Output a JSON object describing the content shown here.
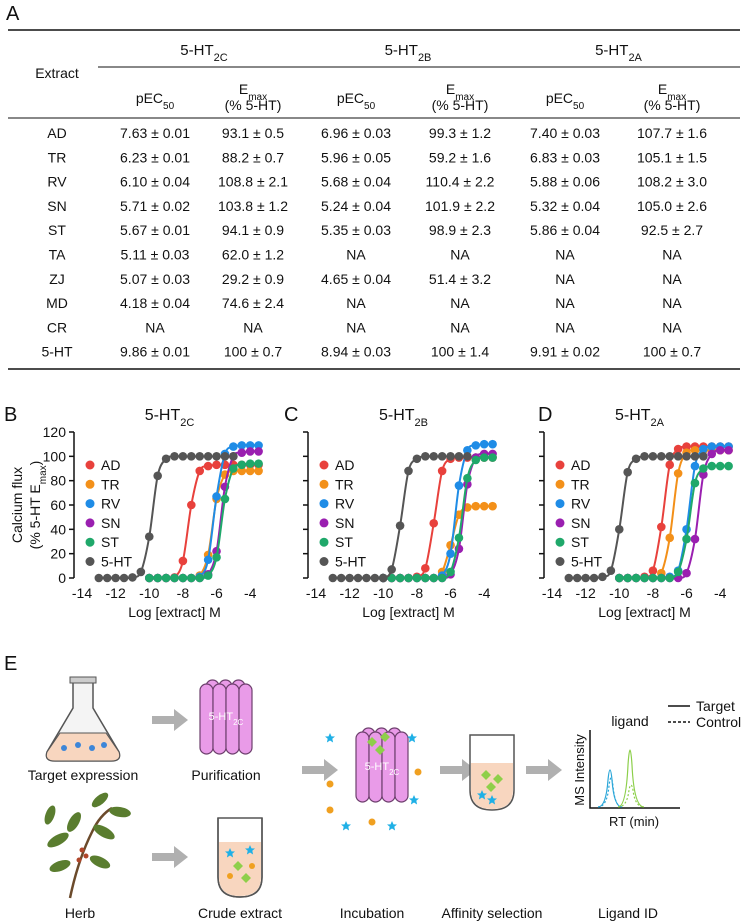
{
  "panel_labels": [
    "A",
    "B",
    "C",
    "D",
    "E"
  ],
  "table": {
    "extract_header": "Extract",
    "receptors": [
      {
        "base": "5-HT",
        "sub": "2C"
      },
      {
        "base": "5-HT",
        "sub": "2B"
      },
      {
        "base": "5-HT",
        "sub": "2A"
      }
    ],
    "pec50": {
      "base": "pEC",
      "sub": "50"
    },
    "emax": {
      "base": "E",
      "sub": "max",
      "line2": "(% 5-HT)"
    },
    "rows": [
      [
        "AD",
        "7.63 ± 0.01",
        "93.1 ± 0.5",
        "6.96 ± 0.03",
        "99.3 ± 1.2",
        "7.40 ± 0.03",
        "107.7 ± 1.6"
      ],
      [
        "TR",
        "6.23 ± 0.01",
        "88.2 ± 0.7",
        "5.96 ± 0.05",
        "59.2 ± 1.6",
        "6.83 ± 0.03",
        "105.1 ± 1.5"
      ],
      [
        "RV",
        "6.10 ± 0.04",
        "108.8 ± 2.1",
        "5.68 ± 0.04",
        "110.4 ± 2.2",
        "5.88 ± 0.06",
        "108.2 ± 3.0"
      ],
      [
        "SN",
        "5.71 ± 0.02",
        "103.8 ± 1.2",
        "5.24 ± 0.04",
        "101.9 ± 2.2",
        "5.32 ± 0.04",
        "105.0 ± 2.6"
      ],
      [
        "ST",
        "5.67 ± 0.01",
        "94.1 ± 0.9",
        "5.35 ± 0.03",
        "98.9 ± 2.3",
        "5.86 ± 0.04",
        "92.5 ± 2.7"
      ],
      [
        "TA",
        "5.11 ± 0.03",
        "62.0 ± 1.2",
        "NA",
        "NA",
        "NA",
        "NA"
      ],
      [
        "ZJ",
        "5.07 ± 0.03",
        "29.2 ± 0.9",
        "4.65 ± 0.04",
        "51.4 ± 3.2",
        "NA",
        "NA"
      ],
      [
        "MD",
        "4.18 ± 0.04",
        "74.6 ± 2.4",
        "NA",
        "NA",
        "NA",
        "NA"
      ],
      [
        "CR",
        "NA",
        "NA",
        "NA",
        "NA",
        "NA",
        "NA"
      ],
      [
        "5-HT",
        "9.86 ± 0.01",
        "100 ± 0.7",
        "8.94 ± 0.03",
        "100 ± 1.4",
        "9.91 ± 0.02",
        "100 ± 0.7"
      ]
    ]
  },
  "chart_data": [
    {
      "type": "line",
      "title": "5-HT",
      "title_sub": "2C",
      "ylabel_line1": "Calcium flux",
      "ylabel_line2": "(% 5-HT E",
      "ylabel_sub": "max",
      "ylabel_end": ")",
      "xlabel": "Log [extract] M",
      "xlim": [
        -14,
        -3
      ],
      "xticks": [
        -14,
        -12,
        -10,
        -8,
        -6,
        -4
      ],
      "ylim": [
        0,
        120
      ],
      "yticks": [
        0,
        20,
        40,
        60,
        80,
        100,
        120
      ],
      "ytick_labels": true,
      "legend": "upper left",
      "series": [
        {
          "name": "AD",
          "color": "#e8413c",
          "x": [
            -10,
            -9.5,
            -9,
            -8.5,
            -8,
            -7.5,
            -7,
            -6.5,
            -6,
            -5.5,
            -5,
            -4.5,
            -4,
            -3.5
          ],
          "values": [
            0,
            0,
            0,
            0.5,
            14,
            60,
            88,
            92,
            93,
            93,
            93,
            93,
            93,
            93
          ]
        },
        {
          "name": "TR",
          "color": "#f39019",
          "x": [
            -10,
            -9.5,
            -9,
            -8.5,
            -8,
            -7.5,
            -7,
            -6.5,
            -6,
            -5.5,
            -5,
            -4.5,
            -4,
            -3.5
          ],
          "values": [
            0,
            0,
            0,
            0,
            0,
            0,
            2,
            19,
            65,
            85,
            88,
            88,
            88,
            88
          ]
        },
        {
          "name": "RV",
          "color": "#1f8ce6",
          "x": [
            -10,
            -9.5,
            -9,
            -8.5,
            -8,
            -7.5,
            -7,
            -6.5,
            -6,
            -5.5,
            -5,
            -4.5,
            -4,
            -3.5
          ],
          "values": [
            0,
            0,
            0,
            0,
            0,
            0,
            1,
            15,
            67,
            102,
            108,
            109,
            109,
            109
          ]
        },
        {
          "name": "SN",
          "color": "#9a1fb0",
          "x": [
            -10,
            -9.5,
            -9,
            -8.5,
            -8,
            -7.5,
            -7,
            -6.5,
            -6,
            -5.5,
            -5,
            -4.5,
            -4,
            -3.5
          ],
          "values": [
            0,
            0,
            0,
            0,
            0,
            0,
            0,
            3,
            22,
            75,
            100,
            103,
            104,
            104
          ]
        },
        {
          "name": "ST",
          "color": "#1fa86a",
          "x": [
            -10,
            -9.5,
            -9,
            -8.5,
            -8,
            -7.5,
            -7,
            -6.5,
            -6,
            -5.5,
            -5,
            -4.5,
            -4,
            -3.5
          ],
          "values": [
            0,
            0,
            0,
            0,
            0,
            0,
            0,
            2,
            17,
            65,
            90,
            93,
            94,
            94
          ]
        },
        {
          "name": "5-HT",
          "color": "#555555",
          "x": [
            -13,
            -12.5,
            -12,
            -11.5,
            -11,
            -10.5,
            -10,
            -9.5,
            -9,
            -8.5,
            -8,
            -7.5,
            -7,
            -6.5,
            -6,
            -5.5,
            -5
          ],
          "values": [
            0,
            0,
            0,
            0,
            0.5,
            5,
            34,
            84,
            98,
            100,
            100,
            100,
            100,
            100,
            100,
            100,
            100
          ]
        }
      ]
    },
    {
      "type": "line",
      "title": "5-HT",
      "title_sub": "2B",
      "xlabel": "Log [extract] M",
      "xlim": [
        -14,
        -3
      ],
      "xticks": [
        -14,
        -12,
        -10,
        -8,
        -6,
        -4
      ],
      "ylim": [
        0,
        120
      ],
      "yticks": [
        0,
        20,
        40,
        60,
        80,
        100,
        120
      ],
      "ytick_labels": false,
      "legend": "upper left",
      "series": [
        {
          "name": "AD",
          "color": "#e8413c",
          "x": [
            -10,
            -9.5,
            -9,
            -8.5,
            -8,
            -7.5,
            -7,
            -6.5,
            -6,
            -5.5,
            -5,
            -4.5,
            -4,
            -3.5
          ],
          "values": [
            0,
            0,
            0,
            0,
            1,
            8,
            45,
            88,
            98,
            99,
            99,
            99,
            99,
            99
          ]
        },
        {
          "name": "TR",
          "color": "#f39019",
          "x": [
            -10,
            -9.5,
            -9,
            -8.5,
            -8,
            -7.5,
            -7,
            -6.5,
            -6,
            -5.5,
            -5,
            -4.5,
            -4,
            -3.5
          ],
          "values": [
            0,
            0,
            0,
            0,
            0,
            0,
            0,
            5,
            27,
            52,
            58,
            59,
            59,
            59
          ]
        },
        {
          "name": "RV",
          "color": "#1f8ce6",
          "x": [
            -10,
            -9.5,
            -9,
            -8.5,
            -8,
            -7.5,
            -7,
            -6.5,
            -6,
            -5.5,
            -5,
            -4.5,
            -4,
            -3.5
          ],
          "values": [
            0,
            0,
            0,
            0,
            0,
            0,
            0,
            2,
            20,
            76,
            105,
            109,
            110,
            110
          ]
        },
        {
          "name": "SN",
          "color": "#9a1fb0",
          "x": [
            -10,
            -9.5,
            -9,
            -8.5,
            -8,
            -7.5,
            -7,
            -6.5,
            -6,
            -5.5,
            -5,
            -4.5,
            -4,
            -3.5
          ],
          "values": [
            0,
            0,
            0,
            0,
            0,
            0,
            0,
            0,
            3,
            24,
            77,
            99,
            102,
            102
          ]
        },
        {
          "name": "ST",
          "color": "#1fa86a",
          "x": [
            -10,
            -9.5,
            -9,
            -8.5,
            -8,
            -7.5,
            -7,
            -6.5,
            -6,
            -5.5,
            -5,
            -4.5,
            -4,
            -3.5
          ],
          "values": [
            0,
            0,
            0,
            0,
            0,
            0,
            0,
            0,
            5,
            33,
            82,
            97,
            99,
            99
          ]
        },
        {
          "name": "5-HT",
          "color": "#555555",
          "x": [
            -13,
            -12.5,
            -12,
            -11.5,
            -11,
            -10.5,
            -10,
            -9.5,
            -9,
            -8.5,
            -8,
            -7.5,
            -7,
            -6.5,
            -6,
            -5.5,
            -5
          ],
          "values": [
            0,
            0,
            0,
            0,
            0,
            0,
            0,
            7,
            43,
            88,
            98,
            100,
            100,
            100,
            100,
            100,
            100
          ]
        }
      ]
    },
    {
      "type": "line",
      "title": "5-HT",
      "title_sub": "2A",
      "xlabel": "Log [extract] M",
      "xlim": [
        -14,
        -3
      ],
      "xticks": [
        -14,
        -12,
        -10,
        -8,
        -6,
        -4
      ],
      "ylim": [
        0,
        120
      ],
      "yticks": [
        0,
        20,
        40,
        60,
        80,
        100,
        120
      ],
      "ytick_labels": false,
      "legend": "upper left",
      "series": [
        {
          "name": "AD",
          "color": "#e8413c",
          "x": [
            -10,
            -9.5,
            -9,
            -8.5,
            -8,
            -7.5,
            -7,
            -6.5,
            -6,
            -5.5,
            -5,
            -4.5,
            -4,
            -3.5
          ],
          "values": [
            0,
            0,
            0,
            1,
            6,
            42,
            93,
            106,
            108,
            108,
            108,
            108,
            108,
            108
          ]
        },
        {
          "name": "TR",
          "color": "#f39019",
          "x": [
            -10,
            -9.5,
            -9,
            -8.5,
            -8,
            -7.5,
            -7,
            -6.5,
            -6,
            -5.5,
            -5,
            -4.5,
            -4,
            -3.5
          ],
          "values": [
            0,
            0,
            0,
            0,
            0,
            4,
            33,
            86,
            103,
            105,
            105,
            105,
            105,
            105
          ]
        },
        {
          "name": "RV",
          "color": "#1f8ce6",
          "x": [
            -10,
            -9.5,
            -9,
            -8.5,
            -8,
            -7.5,
            -7,
            -6.5,
            -6,
            -5.5,
            -5,
            -4.5,
            -4,
            -3.5
          ],
          "values": [
            0,
            0,
            0,
            0,
            0,
            0,
            1,
            6,
            40,
            92,
            106,
            108,
            108,
            108
          ]
        },
        {
          "name": "SN",
          "color": "#9a1fb0",
          "x": [
            -10,
            -9.5,
            -9,
            -8.5,
            -8,
            -7.5,
            -7,
            -6.5,
            -6,
            -5.5,
            -5,
            -4.5,
            -4,
            -3.5
          ],
          "values": [
            0,
            0,
            0,
            0,
            0,
            0,
            0,
            0,
            4,
            32,
            85,
            102,
            105,
            105
          ]
        },
        {
          "name": "ST",
          "color": "#1fa86a",
          "x": [
            -10,
            -9.5,
            -9,
            -8.5,
            -8,
            -7.5,
            -7,
            -6.5,
            -6,
            -5.5,
            -5,
            -4.5,
            -4,
            -3.5
          ],
          "values": [
            0,
            0,
            0,
            0,
            0,
            0,
            0,
            5,
            32,
            78,
            90,
            92,
            92,
            92
          ]
        },
        {
          "name": "5-HT",
          "color": "#555555",
          "x": [
            -13,
            -12.5,
            -12,
            -11.5,
            -11,
            -10.5,
            -10,
            -9.5,
            -9,
            -8.5,
            -8,
            -7.5,
            -7,
            -6.5,
            -6,
            -5.5,
            -5
          ],
          "values": [
            0,
            0,
            0,
            0,
            1,
            6,
            40,
            87,
            98,
            100,
            100,
            100,
            100,
            100,
            100,
            100,
            100
          ]
        }
      ]
    }
  ],
  "diagram": {
    "steps": [
      "Target expression",
      "Purification",
      "Herb",
      "Crude extract",
      "Incubation",
      "Affinity selection",
      "Ligand ID"
    ],
    "receptor": {
      "base": "5-HT",
      "sub": "2C"
    },
    "ms": {
      "ylabel": "MS Intensity",
      "xlabel": "RT (min)",
      "peak_label": "ligand",
      "legend": [
        "Target",
        "Control"
      ]
    }
  }
}
